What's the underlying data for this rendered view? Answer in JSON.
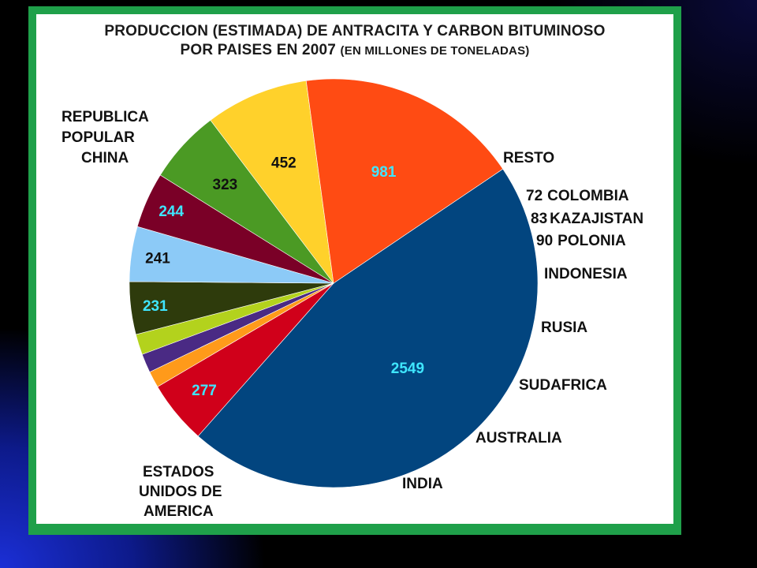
{
  "chart_data": {
    "type": "pie",
    "title_line1": "PRODUCCION (ESTIMADA) DE ANTRACITA Y CARBON BITUMINOSO",
    "title_line2": "POR PAISES EN 2007",
    "title_unit": "(EN MILLONES DE TONELADAS)",
    "slices": [
      {
        "label": "REPUBLICA POPULAR CHINA",
        "value": 2549,
        "value_text": "2549",
        "color": "#02457f",
        "value_color": "#3fe6ff"
      },
      {
        "label": "RESTO",
        "value": 277,
        "value_text": "277",
        "color": "#d0001a",
        "value_color": "#3fe6ff"
      },
      {
        "label": "COLOMBIA",
        "value": 72,
        "value_text": "72",
        "color": "#ff9a1a",
        "value_color": "#111111"
      },
      {
        "label": "KAZAJISTAN",
        "value": 83,
        "value_text": "83",
        "color": "#4a2a84",
        "value_color": "#111111"
      },
      {
        "label": "POLONIA",
        "value": 90,
        "value_text": "90",
        "color": "#b3d21d",
        "value_color": "#111111"
      },
      {
        "label": "INDONESIA",
        "value": 231,
        "value_text": "231",
        "color": "#2e3b0c",
        "value_color": "#3fe6ff"
      },
      {
        "label": "RUSIA",
        "value": 241,
        "value_text": "241",
        "color": "#8ccaf7",
        "value_color": "#111111"
      },
      {
        "label": "SUDAFRICA",
        "value": 244,
        "value_text": "244",
        "color": "#7a0027",
        "value_color": "#3fe6ff"
      },
      {
        "label": "AUSTRALIA",
        "value": 323,
        "value_text": "323",
        "color": "#4b9a24",
        "value_color": "#111111"
      },
      {
        "label": "INDIA",
        "value": 452,
        "value_text": "452",
        "color": "#ffd12b",
        "value_color": "#111111"
      },
      {
        "label": "ESTADOS UNIDOS DE AMERICA",
        "value": 981,
        "value_text": "981",
        "color": "#ff4b13",
        "value_color": "#3fe6ff"
      }
    ],
    "ext_labels": {
      "china": [
        "REPUBLICA",
        "POPULAR",
        "CHINA"
      ],
      "resto": "RESTO",
      "colombia": "COLOMBIA",
      "kazajistan": "KAZAJISTAN",
      "polonia": "POLONIA",
      "indonesia": "INDONESIA",
      "rusia": "RUSIA",
      "sudafrica": "SUDAFRICA",
      "australia": "AUSTRALIA",
      "india": "INDIA",
      "usa": [
        "ESTADOS",
        "UNIDOS DE",
        "AMERICA"
      ]
    }
  }
}
